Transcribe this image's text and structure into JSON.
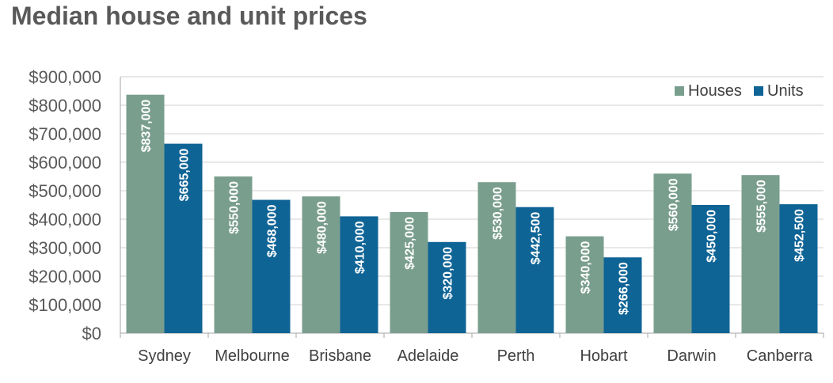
{
  "chart_data": {
    "type": "bar",
    "title": "Median house and unit prices",
    "xlabel": "",
    "ylabel": "",
    "ylim": [
      0,
      900000
    ],
    "yticks": [
      0,
      100000,
      200000,
      300000,
      400000,
      500000,
      600000,
      700000,
      800000,
      900000
    ],
    "ytick_labels": [
      "$0",
      "$100,000",
      "$200,000",
      "$300,000",
      "$400,000",
      "$500,000",
      "$600,000",
      "$700,000",
      "$800,000",
      "$900,000"
    ],
    "categories": [
      "Sydney",
      "Melbourne",
      "Brisbane",
      "Adelaide",
      "Perth",
      "Hobart",
      "Darwin",
      "Canberra"
    ],
    "series": [
      {
        "name": "Houses",
        "color": "#7a9e8e",
        "values": [
          837000,
          550000,
          480000,
          425000,
          530000,
          340000,
          560000,
          555000
        ],
        "labels": [
          "$837,000",
          "$550,000",
          "$480,000",
          "$425,000",
          "$530,000",
          "$340,000",
          "$560,000",
          "$555,000"
        ]
      },
      {
        "name": "Units",
        "color": "#0f6496",
        "values": [
          665000,
          468000,
          410000,
          320000,
          442500,
          266000,
          450000,
          452500
        ],
        "labels": [
          "$665,000",
          "$468,000",
          "$410,000",
          "$320,000",
          "$442,500",
          "$266,000",
          "$450,000",
          "$452,500"
        ]
      }
    ],
    "grid": true,
    "legend_position": "top-right"
  }
}
